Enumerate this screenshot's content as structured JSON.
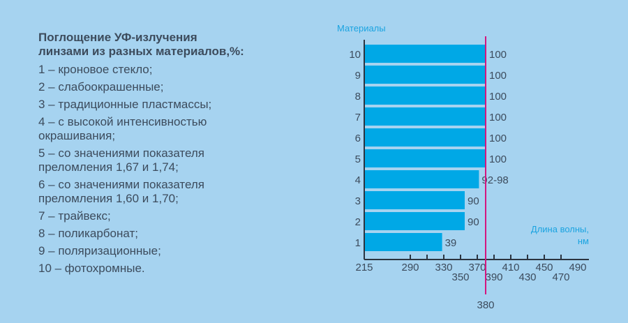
{
  "legend": {
    "title": "Поглощение УФ-излучения\nлинзами из разных материалов,%:",
    "items": [
      "1 – кроновое стекло;",
      "2 – слабоокрашенные;",
      "3 – традиционные пластмассы;",
      "4 – с высокой интенсивностью\nокрашивания;",
      "5 – со значениями показателя\nпреломления 1,67 и 1,74;",
      "6 – со значениями показателя\nпреломления 1,60 и 1,70;",
      "7 – трайвекс;",
      "8 – поликарбонат;",
      "9 – поляризационные;",
      "10 – фотохромные."
    ]
  },
  "chart_data": {
    "type": "bar",
    "orientation": "horizontal",
    "ylabel": "Материалы",
    "xlabel": "Длина волны,\nнм",
    "categories": [
      "1",
      "2",
      "3",
      "4",
      "5",
      "6",
      "7",
      "8",
      "9",
      "10"
    ],
    "values": [
      328,
      355,
      355,
      372,
      380,
      380,
      380,
      380,
      380,
      380
    ],
    "data_labels": [
      "39",
      "90",
      "90",
      "92-98",
      "100",
      "100",
      "100",
      "100",
      "100",
      "100"
    ],
    "x_ticks_upper": [
      215,
      290,
      330,
      370,
      410,
      450,
      490
    ],
    "x_ticks_lower": [
      350,
      390,
      430,
      470
    ],
    "x_tick_marks": [
      290,
      310,
      330,
      350,
      370,
      390,
      410,
      430,
      450,
      470
    ],
    "xlim": [
      215,
      500
    ],
    "reference_line": {
      "value": 380,
      "label": "380"
    },
    "colors": {
      "bar": "#00a8e6",
      "reference_line": "#d4167f",
      "axis_title": "#1aa3e0",
      "background": "#a6d3f0"
    }
  }
}
